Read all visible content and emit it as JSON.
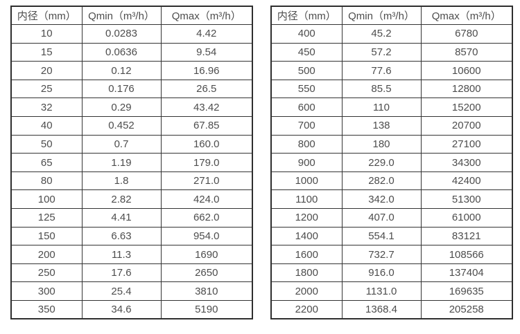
{
  "colors": {
    "background": "#ffffff",
    "border": "#333333",
    "text": "#4d4d4d"
  },
  "tables": [
    {
      "name": "flow-rate-table-small-diameters",
      "headers": [
        "内径（mm）",
        "Qmin（m³/h）",
        "Qmax（m³/h）"
      ],
      "rows": [
        [
          "10",
          "0.0283",
          "4.42"
        ],
        [
          "15",
          "0.0636",
          "9.54"
        ],
        [
          "20",
          "0.12",
          "16.96"
        ],
        [
          "25",
          "0.176",
          "26.5"
        ],
        [
          "32",
          "0.29",
          "43.42"
        ],
        [
          "40",
          "0.452",
          "67.85"
        ],
        [
          "50",
          "0.7",
          "160.0"
        ],
        [
          "65",
          "1.19",
          "179.0"
        ],
        [
          "80",
          "1.8",
          "271.0"
        ],
        [
          "100",
          "2.82",
          "424.0"
        ],
        [
          "125",
          "4.41",
          "662.0"
        ],
        [
          "150",
          "6.63",
          "954.0"
        ],
        [
          "200",
          "11.3",
          "1690"
        ],
        [
          "250",
          "17.6",
          "2650"
        ],
        [
          "300",
          "25.4",
          "3810"
        ],
        [
          "350",
          "34.6",
          "5190"
        ]
      ]
    },
    {
      "name": "flow-rate-table-large-diameters",
      "headers": [
        "内径（mm）",
        "Qmin（m³/h）",
        "Qmax（m³/h）"
      ],
      "rows": [
        [
          "400",
          "45.2",
          "6780"
        ],
        [
          "450",
          "57.2",
          "8570"
        ],
        [
          "500",
          "77.6",
          "10600"
        ],
        [
          "550",
          "85.5",
          "12800"
        ],
        [
          "600",
          "110",
          "15200"
        ],
        [
          "700",
          "138",
          "20700"
        ],
        [
          "800",
          "180",
          "27100"
        ],
        [
          "900",
          "229.0",
          "34300"
        ],
        [
          "1000",
          "282.0",
          "42400"
        ],
        [
          "1100",
          "342.0",
          "51300"
        ],
        [
          "1200",
          "407.0",
          "61000"
        ],
        [
          "1400",
          "554.1",
          "83121"
        ],
        [
          "1600",
          "732.7",
          "108566"
        ],
        [
          "1800",
          "916.0",
          "137404"
        ],
        [
          "2000",
          "1131.0",
          "169635"
        ],
        [
          "2200",
          "1368.4",
          "205258"
        ]
      ]
    }
  ]
}
